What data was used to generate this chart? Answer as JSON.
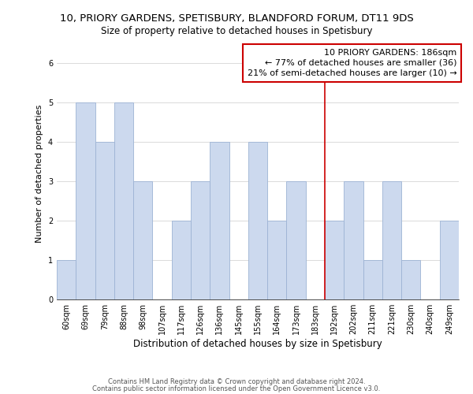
{
  "title": "10, PRIORY GARDENS, SPETISBURY, BLANDFORD FORUM, DT11 9DS",
  "subtitle": "Size of property relative to detached houses in Spetisbury",
  "xlabel": "Distribution of detached houses by size in Spetisbury",
  "ylabel": "Number of detached properties",
  "bins": [
    "60sqm",
    "69sqm",
    "79sqm",
    "88sqm",
    "98sqm",
    "107sqm",
    "117sqm",
    "126sqm",
    "136sqm",
    "145sqm",
    "155sqm",
    "164sqm",
    "173sqm",
    "183sqm",
    "192sqm",
    "202sqm",
    "211sqm",
    "221sqm",
    "230sqm",
    "240sqm",
    "249sqm"
  ],
  "values": [
    1,
    5,
    4,
    5,
    3,
    0,
    2,
    3,
    4,
    0,
    4,
    2,
    3,
    0,
    2,
    3,
    1,
    3,
    1,
    0,
    2
  ],
  "bar_color": "#ccd9ee",
  "bar_edge_color": "#9db3d4",
  "vline_x_index": 13.5,
  "vline_color": "#cc0000",
  "annotation_line1": "10 PRIORY GARDENS: 186sqm",
  "annotation_line2": "← 77% of detached houses are smaller (36)",
  "annotation_line3": "21% of semi-detached houses are larger (10) →",
  "annotation_box_edge_color": "#cc0000",
  "ylim": [
    0,
    6.4
  ],
  "yticks": [
    0,
    1,
    2,
    3,
    4,
    5,
    6
  ],
  "footer_line1": "Contains HM Land Registry data © Crown copyright and database right 2024.",
  "footer_line2": "Contains public sector information licensed under the Open Government Licence v3.0.",
  "background_color": "#ffffff",
  "title_fontsize": 9.5,
  "subtitle_fontsize": 8.5,
  "xlabel_fontsize": 8.5,
  "ylabel_fontsize": 8,
  "tick_fontsize": 7,
  "annotation_fontsize": 8,
  "footer_fontsize": 6
}
